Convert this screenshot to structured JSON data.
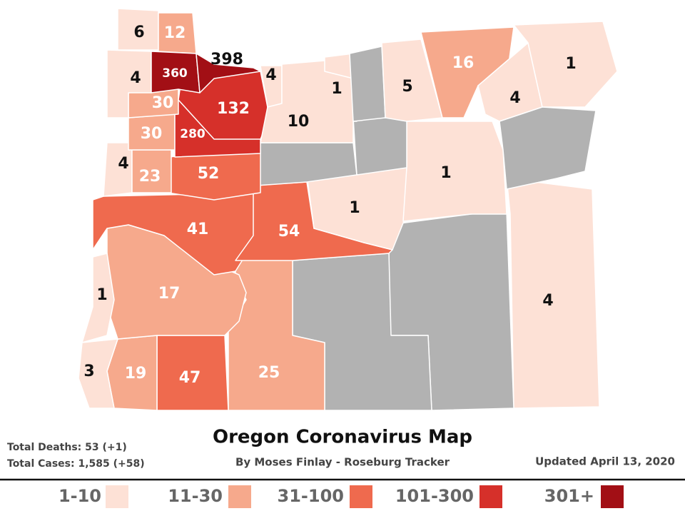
{
  "title": "Oregon Coronavirus Map",
  "subtitle": "By Moses Finlay - Roseburg Tracker",
  "updated": "Updated April 13, 2020",
  "stats": [
    "Total Deaths: 53 (+1)",
    "Total Cases: 1,585 (+58)"
  ],
  "no_data_color": "#b2b2b2",
  "legend": [
    {
      "label": "1-10",
      "color": "#fde1d6"
    },
    {
      "label": "11-30",
      "color": "#f6a98c"
    },
    {
      "label": "31-100",
      "color": "#ef6a4e"
    },
    {
      "label": "101-300",
      "color": "#d6302a"
    },
    {
      "label": "301+",
      "color": "#a20f15"
    }
  ],
  "counties": [
    {
      "cases": 4,
      "color": "#fde1d6"
    },
    {
      "color": "#b2b2b2"
    },
    {
      "color": "#b2b2b2"
    },
    {
      "cases": 25,
      "color": "#f6a98c"
    },
    {
      "cases": 47,
      "color": "#ef6a4e"
    },
    {
      "cases": 19,
      "color": "#f6a98c"
    },
    {
      "cases": 3,
      "color": "#fde1d6"
    },
    {
      "cases": 17,
      "color": "#f6a98c"
    },
    {
      "cases": 1,
      "color": "#fde1d6"
    },
    {
      "cases": 41,
      "color": "#ef6a4e"
    },
    {
      "cases": 54,
      "color": "#ef6a4e"
    },
    {
      "cases": 1,
      "color": "#fde1d6"
    },
    {
      "cases": 1,
      "color": "#fde1d6"
    },
    {
      "color": "#b2b2b2"
    },
    {
      "color": "#b2b2b2"
    },
    {
      "cases": 52,
      "color": "#ef6a4e"
    },
    {
      "cases": 4,
      "color": "#fde1d6"
    },
    {
      "cases": 23,
      "color": "#f6a98c"
    },
    {
      "cases": 30,
      "color": "#f6a98c"
    },
    {
      "cases": 280,
      "color": "#d6302a"
    },
    {
      "cases": 30,
      "color": "#f6a98c"
    },
    {
      "cases": 132,
      "color": "#d6302a"
    },
    {
      "cases": 4,
      "color": "#fde1d6"
    },
    {
      "cases": 10,
      "color": "#fde1d6"
    },
    {
      "cases": 1,
      "color": "#fde1d6"
    },
    {
      "color": "#b2b2b2"
    },
    {
      "cases": 5,
      "color": "#fde1d6"
    },
    {
      "cases": 16,
      "color": "#f6a98c"
    },
    {
      "cases": 4,
      "color": "#fde1d6"
    },
    {
      "cases": 1,
      "color": "#fde1d6"
    },
    {
      "color": "#b2b2b2"
    },
    {
      "cases": 4,
      "color": "#fde1d6"
    },
    {
      "cases": 6,
      "color": "#fde1d6"
    },
    {
      "cases": 12,
      "color": "#f6a98c"
    },
    {
      "cases": 360,
      "color": "#a20f15"
    },
    {
      "cases": 398,
      "color": "#a20f15"
    }
  ]
}
